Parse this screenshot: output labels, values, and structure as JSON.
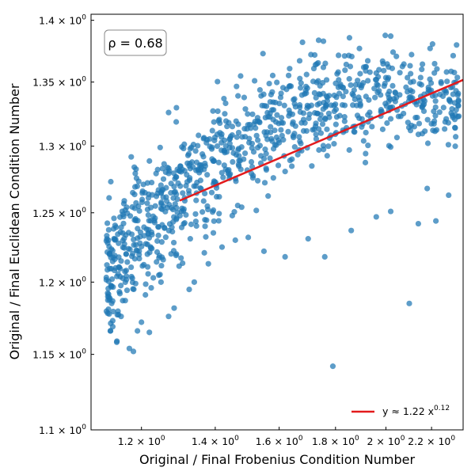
{
  "chart_data": {
    "type": "scatter",
    "xlabel": "Original / Final Frobenius Condition Number",
    "ylabel": "Original / Final Euclidean Condition Number",
    "xscale": "log",
    "yscale": "log",
    "xlim": [
      1.08,
      2.35
    ],
    "ylim": [
      1.1,
      1.405
    ],
    "grid": false,
    "legend_position": "lower-right",
    "annotation": {
      "text": "ρ = 0.68",
      "position": "top-left"
    },
    "x_ticks": [
      {
        "value": 1.2,
        "base": "1.2 × 10",
        "exp": "0"
      },
      {
        "value": 1.4,
        "base": "1.4 × 10",
        "exp": "0"
      },
      {
        "value": 1.6,
        "base": "1.6 × 10",
        "exp": "0"
      },
      {
        "value": 1.8,
        "base": "1.8 × 10",
        "exp": "0"
      },
      {
        "value": 2.0,
        "base": "2 × 10",
        "exp": "0"
      },
      {
        "value": 2.2,
        "base": "2.2 × 10",
        "exp": "0"
      }
    ],
    "y_ticks": [
      {
        "value": 1.1,
        "base": "1.1 × 10",
        "exp": "0"
      },
      {
        "value": 1.15,
        "base": "1.15 × 10",
        "exp": "0"
      },
      {
        "value": 1.2,
        "base": "1.2 × 10",
        "exp": "0"
      },
      {
        "value": 1.25,
        "base": "1.25 × 10",
        "exp": "0"
      },
      {
        "value": 1.3,
        "base": "1.3 × 10",
        "exp": "0"
      },
      {
        "value": 1.35,
        "base": "1.35 × 10",
        "exp": "0"
      },
      {
        "value": 1.4,
        "base": "1.4 × 10",
        "exp": "0"
      }
    ],
    "fit": {
      "label": "y ≈ 1.22 x",
      "label_exp": "0.12",
      "coefficient": 1.22,
      "exponent": 0.12,
      "x_range": [
        1.3,
        2.35
      ],
      "color": "#e31a1c"
    },
    "point_color": "#1f77b4",
    "point_count": 1000,
    "points": [
      [
        1.12,
        1.181
      ],
      [
        1.13,
        1.173
      ],
      [
        1.14,
        1.159
      ],
      [
        1.15,
        1.176
      ],
      [
        1.16,
        1.187
      ],
      [
        1.17,
        1.154
      ],
      [
        1.18,
        1.152
      ],
      [
        1.19,
        1.166
      ],
      [
        1.2,
        1.172
      ],
      [
        1.22,
        1.165
      ],
      [
        1.21,
        1.191
      ],
      [
        1.23,
        1.203
      ],
      [
        1.25,
        1.2
      ],
      [
        1.27,
        1.176
      ],
      [
        1.29,
        1.219
      ],
      [
        1.34,
        1.2
      ],
      [
        1.38,
        1.213
      ],
      [
        1.42,
        1.225
      ],
      [
        1.46,
        1.23
      ],
      [
        1.5,
        1.232
      ],
      [
        1.55,
        1.222
      ],
      [
        1.62,
        1.218
      ],
      [
        1.7,
        1.231
      ],
      [
        1.76,
        1.218
      ],
      [
        1.79,
        1.142
      ],
      [
        1.86,
        1.237
      ],
      [
        1.96,
        1.247
      ],
      [
        2.02,
        1.251
      ],
      [
        2.1,
        1.185
      ],
      [
        2.14,
        1.242
      ],
      [
        2.18,
        1.268
      ],
      [
        2.22,
        1.244
      ],
      [
        2.28,
        1.263
      ],
      [
        1.68,
        1.382
      ],
      [
        2.02,
        1.387
      ],
      [
        2.03,
        1.374
      ],
      [
        2.11,
        1.372
      ],
      [
        1.71,
        1.372
      ],
      [
        1.67,
        1.367
      ],
      [
        2.27,
        1.358
      ],
      [
        1.52,
        1.351
      ],
      [
        1.27,
        1.326
      ],
      [
        1.16,
        1.252
      ],
      [
        1.15,
        1.215
      ],
      [
        1.14,
        1.204
      ],
      [
        1.12,
        1.23
      ]
    ]
  }
}
